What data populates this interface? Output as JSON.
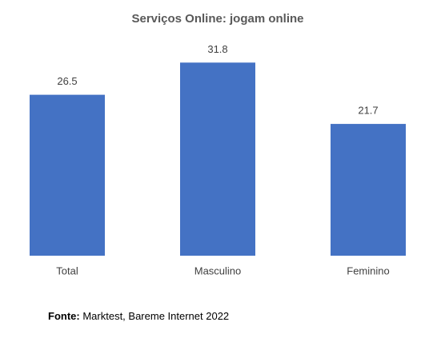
{
  "chart_data": {
    "type": "bar",
    "title": "Serviços Online: jogam online",
    "categories": [
      "Total",
      "Masculino",
      "Feminino"
    ],
    "values": [
      26.5,
      31.8,
      21.7
    ],
    "color": "#4472c4",
    "ylim": [
      0,
      35
    ],
    "source_label": "Fonte:",
    "source": "Marktest, Bareme Internet 2022"
  }
}
